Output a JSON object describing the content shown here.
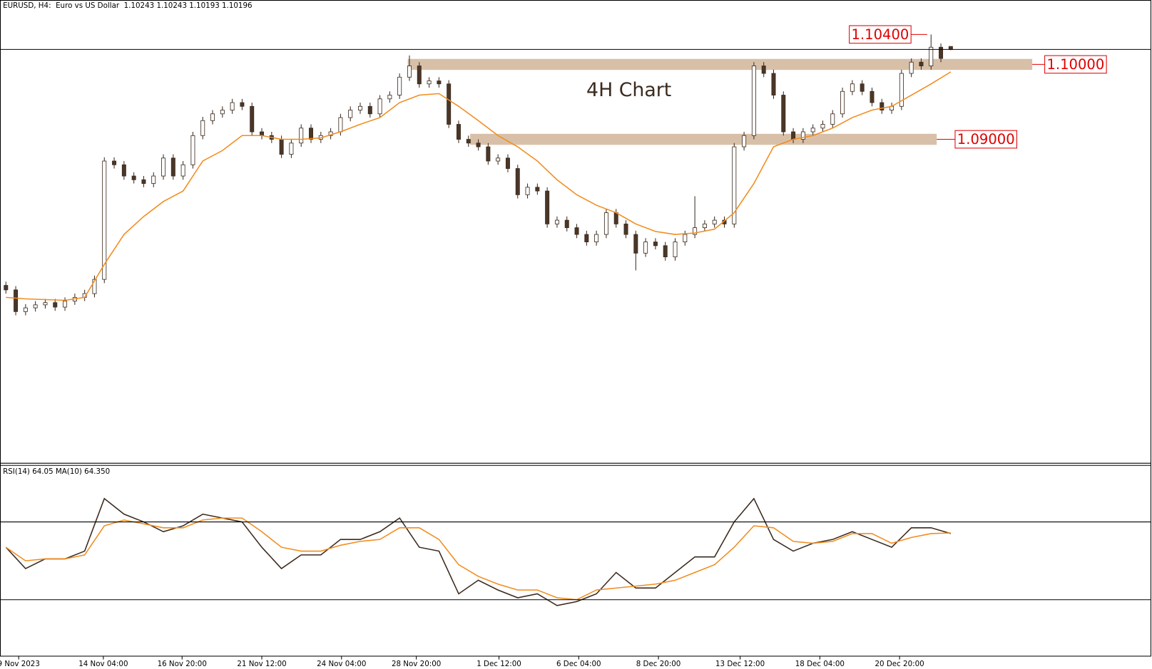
{
  "chart_data": {
    "type": "candlestick",
    "title": "EURUSD, H4:  Euro vs US Dollar  1.10243 1.10243 1.10193 1.10196",
    "annotation": "4H Chart",
    "up_color": "#ffffff",
    "down_color": "#4a3728",
    "wick_color": "#3b2a1e",
    "open": [
      1.0705,
      1.0699,
      1.067,
      1.0675,
      1.0679,
      1.0682,
      1.0676,
      1.0684,
      1.0689,
      1.0694,
      1.0713,
      1.0871,
      1.0866,
      1.0851,
      1.0846,
      1.0841,
      1.0851,
      1.0875,
      1.0851,
      1.0866,
      1.0905,
      1.0925,
      1.0934,
      1.0939,
      1.0949,
      1.0944,
      1.091,
      1.0905,
      1.09,
      1.088,
      1.0895,
      1.0915,
      1.09,
      1.0905,
      1.091,
      1.0929,
      1.0939,
      1.0944,
      1.0934,
      1.0954,
      1.0959,
      1.0983,
      1.0998,
      1.0974,
      1.0978,
      1.0974,
      1.092,
      1.09,
      1.0895,
      1.089,
      1.0871,
      1.0875,
      1.0861,
      1.0826,
      1.0836,
      1.0831,
      1.0787,
      1.0792,
      1.0782,
      1.0773,
      1.0763,
      1.0773,
      1.0802,
      1.0787,
      1.0773,
      1.0748,
      1.0763,
      1.0758,
      1.0743,
      1.0763,
      1.0773,
      1.0782,
      1.0787,
      1.0792,
      1.0787,
      1.089,
      1.0905,
      1.0998,
      1.0988,
      1.0959,
      1.091,
      1.09,
      1.091,
      1.0915,
      1.092,
      1.0934,
      1.0964,
      1.0974,
      1.0964,
      1.0949,
      1.0939,
      1.0944,
      1.0988,
      1.1003,
      1.0998,
      1.1023,
      1.1024
    ],
    "high": [
      1.071,
      1.0704,
      1.068,
      1.0684,
      1.0687,
      1.0687,
      1.0689,
      1.0694,
      1.0699,
      1.0718,
      1.0876,
      1.0876,
      1.0871,
      1.0856,
      1.0851,
      1.0856,
      1.088,
      1.088,
      1.0871,
      1.091,
      1.093,
      1.0939,
      1.0944,
      1.0954,
      1.0954,
      1.0949,
      1.0915,
      1.091,
      1.0905,
      1.09,
      1.092,
      1.092,
      1.091,
      1.0915,
      1.0934,
      1.0944,
      1.0949,
      1.0949,
      1.0959,
      1.0964,
      1.0988,
      1.1012,
      1.1003,
      1.0983,
      1.0983,
      1.0979,
      1.0925,
      1.0905,
      1.09,
      1.0895,
      1.088,
      1.088,
      1.0866,
      1.0841,
      1.0841,
      1.0836,
      1.0797,
      1.0797,
      1.0787,
      1.0778,
      1.0778,
      1.0807,
      1.0807,
      1.0792,
      1.0778,
      1.0768,
      1.0768,
      1.0763,
      1.0768,
      1.0778,
      1.0824,
      1.0792,
      1.0797,
      1.0797,
      1.0895,
      1.091,
      1.1003,
      1.1003,
      1.0993,
      1.0964,
      1.0915,
      1.0915,
      1.092,
      1.0925,
      1.0939,
      1.0969,
      1.0979,
      1.0979,
      1.0969,
      1.0954,
      1.0949,
      1.0993,
      1.1008,
      1.1008,
      1.104,
      1.1028,
      1.1024
    ],
    "low": [
      1.0694,
      1.0665,
      1.0665,
      1.067,
      1.0674,
      1.0671,
      1.0671,
      1.0679,
      1.0684,
      1.0689,
      1.0708,
      1.0861,
      1.0846,
      1.0841,
      1.0836,
      1.0836,
      1.0846,
      1.0846,
      1.0846,
      1.0861,
      1.09,
      1.092,
      1.0929,
      1.0934,
      1.0939,
      1.0905,
      1.09,
      1.0895,
      1.0875,
      1.0875,
      1.089,
      1.0895,
      1.0895,
      1.09,
      1.0905,
      1.0924,
      1.0934,
      1.0929,
      1.0929,
      1.0949,
      1.0954,
      1.0978,
      1.0969,
      1.0969,
      1.0969,
      1.0915,
      1.0895,
      1.089,
      1.0885,
      1.0866,
      1.0866,
      1.0856,
      1.0821,
      1.0821,
      1.0826,
      1.0782,
      1.0782,
      1.0777,
      1.0768,
      1.0758,
      1.0758,
      1.0768,
      1.0782,
      1.0768,
      1.0725,
      1.0743,
      1.0753,
      1.0738,
      1.0738,
      1.0758,
      1.0768,
      1.0777,
      1.0782,
      1.0782,
      1.0782,
      1.0885,
      1.09,
      1.0983,
      1.0954,
      1.0905,
      1.0895,
      1.0895,
      1.0905,
      1.091,
      1.0915,
      1.0929,
      1.0959,
      1.0959,
      1.0944,
      1.0934,
      1.0934,
      1.0939,
      1.0983,
      1.0993,
      1.0993,
      1.1003,
      1.1019
    ],
    "close": [
      1.0699,
      1.067,
      1.0675,
      1.0679,
      1.0682,
      1.0676,
      1.0684,
      1.0689,
      1.0694,
      1.0713,
      1.0871,
      1.0866,
      1.0851,
      1.0846,
      1.0841,
      1.0851,
      1.0875,
      1.0851,
      1.0866,
      1.0905,
      1.0925,
      1.0934,
      1.0939,
      1.0949,
      1.0944,
      1.091,
      1.0905,
      1.09,
      1.088,
      1.0895,
      1.0915,
      1.09,
      1.0905,
      1.091,
      1.0929,
      1.0939,
      1.0944,
      1.0934,
      1.0954,
      1.0959,
      1.0983,
      1.0998,
      1.0974,
      1.0978,
      1.0974,
      1.092,
      1.09,
      1.0895,
      1.089,
      1.0871,
      1.0875,
      1.0861,
      1.0826,
      1.0836,
      1.0831,
      1.0787,
      1.0792,
      1.0782,
      1.0773,
      1.0763,
      1.0773,
      1.0802,
      1.0787,
      1.0773,
      1.0748,
      1.0763,
      1.0758,
      1.0743,
      1.0763,
      1.0773,
      1.0782,
      1.0787,
      1.0792,
      1.0787,
      1.089,
      1.0905,
      1.0998,
      1.0988,
      1.0959,
      1.091,
      1.09,
      1.091,
      1.0915,
      1.092,
      1.0934,
      1.0964,
      1.0974,
      1.0964,
      1.0949,
      1.0939,
      1.0944,
      1.0988,
      1.1003,
      1.0998,
      1.1023,
      1.1008,
      1.102
    ],
    "ma": {
      "color": "#f28c1e",
      "x": [
        0,
        2,
        4,
        6,
        8,
        10,
        12,
        14,
        16,
        18,
        20,
        22,
        24,
        26,
        28,
        30,
        32,
        34,
        36,
        38,
        40,
        42,
        44,
        46,
        48,
        50,
        52,
        54,
        56,
        58,
        60,
        62,
        64,
        66,
        68,
        70,
        72,
        74,
        76,
        78,
        80,
        82,
        84,
        86,
        88,
        90,
        92,
        94,
        96
      ],
      "values": [
        1.0689,
        1.0687,
        1.0686,
        1.0685,
        1.0689,
        1.0733,
        1.0773,
        1.0797,
        1.0817,
        1.0831,
        1.0871,
        1.0885,
        1.0905,
        1.0905,
        1.09,
        1.09,
        1.0902,
        1.091,
        1.092,
        1.0929,
        1.0949,
        1.0959,
        1.0961,
        1.0944,
        1.0925,
        1.0905,
        1.089,
        1.0871,
        1.0846,
        1.0826,
        1.0812,
        1.0802,
        1.0787,
        1.0777,
        1.0773,
        1.0775,
        1.078,
        1.0802,
        1.0841,
        1.089,
        1.09,
        1.0905,
        1.0915,
        1.0929,
        1.0939,
        1.0944,
        1.0959,
        1.0974,
        1.099
      ]
    },
    "xlim": [
      -0.6,
      116.3
    ],
    "ylim": [
      1.0469,
      1.1086
    ],
    "xticks": [
      {
        "value": 1.3,
        "label": "9 Nov 2023"
      },
      {
        "value": 9.9,
        "label": "14 Nov 04:00"
      },
      {
        "value": 17.9,
        "label": "16 Nov 20:00"
      },
      {
        "value": 26,
        "label": "21 Nov 12:00"
      },
      {
        "value": 34.1,
        "label": "24 Nov 04:00"
      },
      {
        "value": 41.7,
        "label": "28 Nov 20:00"
      },
      {
        "value": 50.1,
        "label": "1 Dec 12:00"
      },
      {
        "value": 58.2,
        "label": "6 Dec 04:00"
      },
      {
        "value": 66.3,
        "label": "8 Dec 20:00"
      },
      {
        "value": 74.6,
        "label": "13 Dec 12:00"
      },
      {
        "value": 82.7,
        "label": "18 Dec 04:00"
      },
      {
        "value": 90.8,
        "label": "20 Dec 20:00"
      }
    ],
    "levels": [
      {
        "value": 1.104,
        "label": "1.10400"
      },
      {
        "value": 1.1,
        "label": "1.10000"
      },
      {
        "value": 1.09,
        "label": "1.09000"
      }
    ],
    "zone_color": "#d8c0a8",
    "rsi": {
      "label": "RSI(14) 64.05 MA(10) 64.350",
      "ylim": [
        0,
        100
      ],
      "levels": [
        30,
        70
      ],
      "color": "#3b2a1e",
      "ma_color": "#f28c1e",
      "x": [
        0,
        2,
        4,
        6,
        8,
        10,
        12,
        14,
        16,
        18,
        20,
        22,
        24,
        26,
        28,
        30,
        32,
        34,
        36,
        38,
        40,
        42,
        44,
        46,
        48,
        50,
        52,
        54,
        56,
        58,
        60,
        62,
        64,
        66,
        68,
        70,
        72,
        74,
        76,
        78,
        80,
        82,
        84,
        86,
        88,
        90,
        92,
        94,
        96
      ],
      "values": [
        57,
        46,
        51,
        51,
        55,
        82,
        74,
        70,
        65,
        68,
        74,
        72,
        70,
        57,
        46,
        53,
        53,
        61,
        61,
        65,
        72,
        57,
        55,
        33,
        40,
        35,
        31,
        33,
        27,
        29,
        33,
        44,
        36,
        36,
        44,
        52,
        52,
        70,
        82,
        61,
        55,
        59,
        61,
        65,
        61,
        57,
        67,
        67,
        64.05
      ],
      "ma": [
        57,
        50,
        51,
        51,
        53,
        68,
        71,
        69,
        67,
        67,
        71,
        72,
        72,
        65,
        57,
        55,
        55,
        58,
        60,
        61,
        67,
        67,
        61,
        48,
        42,
        38,
        35,
        35,
        31,
        30,
        35,
        36,
        37,
        38,
        40,
        44,
        48,
        57,
        68,
        67,
        60,
        59,
        60,
        64,
        64,
        59,
        62,
        64,
        64.35
      ]
    }
  }
}
